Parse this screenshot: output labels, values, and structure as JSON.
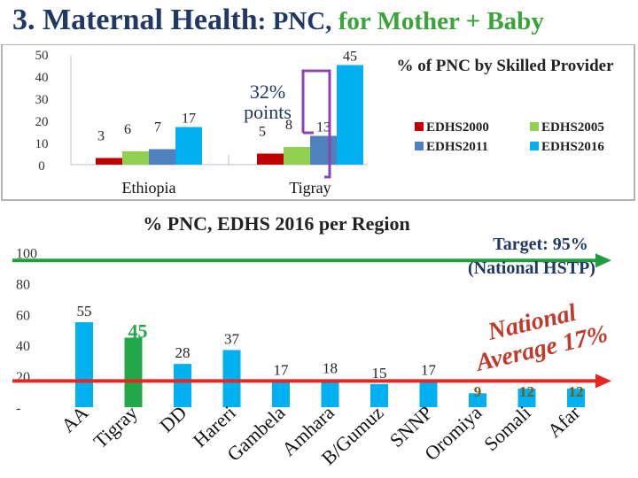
{
  "slide_title": {
    "main": "3. Maternal Health",
    "pnc": ": PNC,",
    "rest": " for Mother + Baby"
  },
  "colors": {
    "title": "#1f3864",
    "title_green": "#3aa33a",
    "edhs2000": "#c00000",
    "edhs2005": "#92d050",
    "edhs2011": "#4f81bd",
    "edhs2016": "#00b0f0",
    "region_bar": "#00b0f0",
    "tigray_bar": "#22a84a",
    "target_line": "#1e9e3c",
    "average_line": "#e8251e",
    "annotation_text": "#1f3864",
    "bracket": "#8e44ad",
    "average_text": "#c0392b"
  },
  "chart_data": [
    {
      "type": "bar",
      "title": "% of PNC by Skilled Provider",
      "categories": [
        "Ethiopia",
        "Tigray"
      ],
      "series": [
        {
          "name": "EDHS2000",
          "values": [
            3,
            5
          ]
        },
        {
          "name": "EDHS2005",
          "values": [
            6,
            8
          ]
        },
        {
          "name": "EDHS2011",
          "values": [
            7,
            13
          ]
        },
        {
          "name": "EDHS2016",
          "values": [
            17,
            45
          ]
        }
      ],
      "ylim": [
        0,
        50
      ],
      "yticks": [
        "0",
        "10",
        "20",
        "30",
        "40",
        "50"
      ],
      "legend": "top-right",
      "annotation": {
        "line1": "32%",
        "line2": "points"
      }
    },
    {
      "type": "bar",
      "title": "% PNC, EDHS 2016 per Region",
      "categories": [
        "AA",
        "Tigray",
        "DD",
        "Hareri",
        "Gambela",
        "Amhara",
        "B/Gumuz",
        "SNNP",
        "Oromiya",
        "Somali",
        "Afar"
      ],
      "values": [
        55,
        45,
        28,
        37,
        17,
        18,
        15,
        17,
        9,
        12,
        12
      ],
      "ylim": [
        0,
        100
      ],
      "yticks": [
        "-",
        "20",
        "40",
        "60",
        "80",
        "100"
      ],
      "highlight_category": "Tigray",
      "target": {
        "value": 95,
        "label_line1": "Target: 95%",
        "label_line2": "(National HSTP)"
      },
      "average": {
        "value": 17,
        "label_line1": "National",
        "label_line2": "Average 17%"
      }
    }
  ]
}
